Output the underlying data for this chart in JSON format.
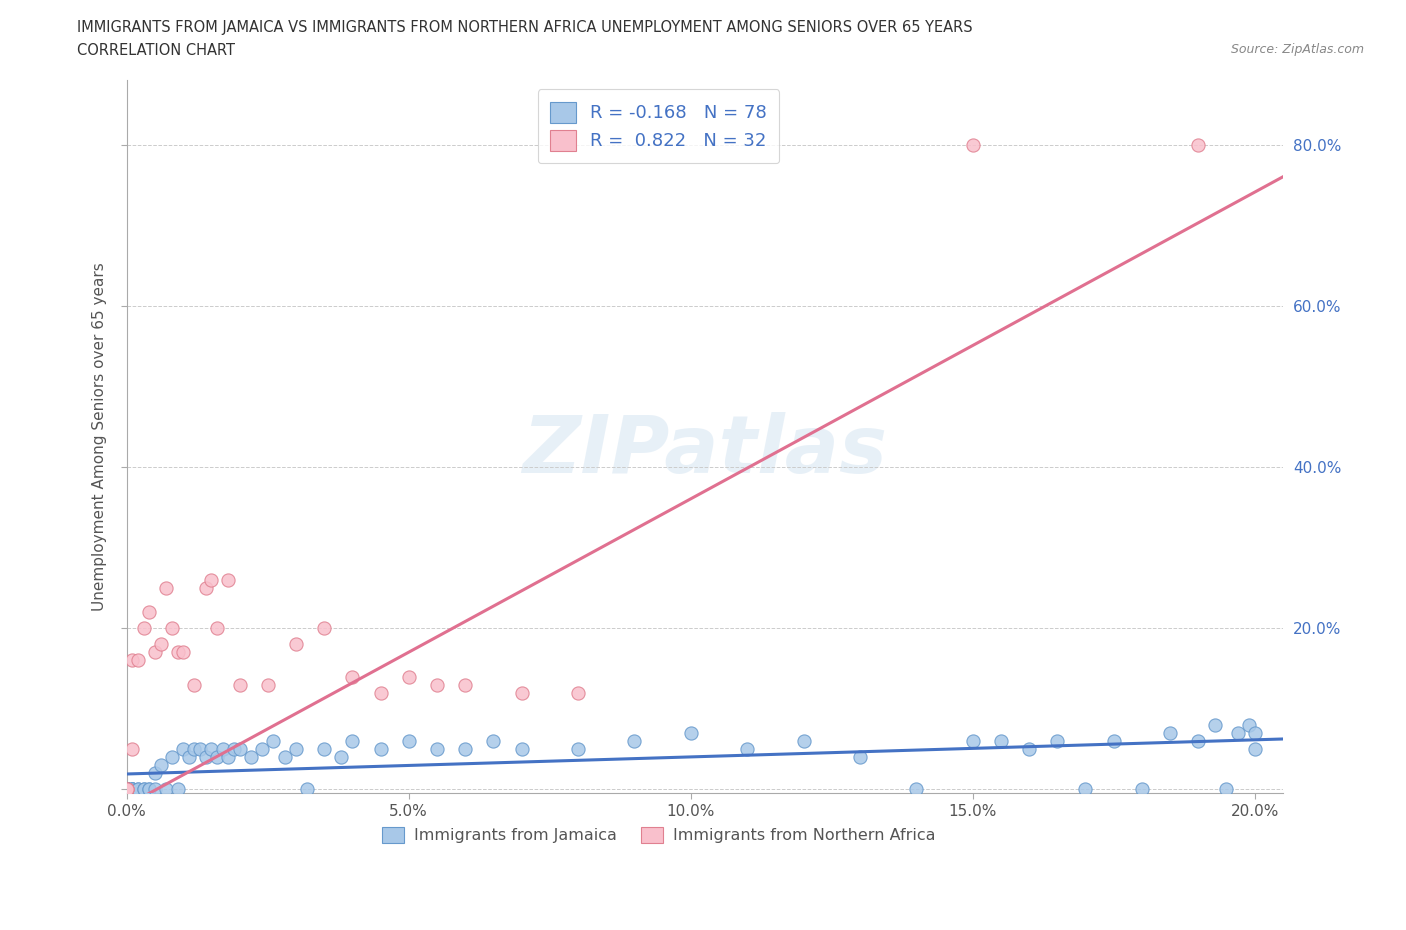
{
  "title_line1": "IMMIGRANTS FROM JAMAICA VS IMMIGRANTS FROM NORTHERN AFRICA UNEMPLOYMENT AMONG SENIORS OVER 65 YEARS",
  "title_line2": "CORRELATION CHART",
  "source_text": "Source: ZipAtlas.com",
  "ylabel": "Unemployment Among Seniors over 65 years",
  "jamaica_color": "#a8c8e8",
  "jamaica_edge_color": "#6699cc",
  "jamaica_line_color": "#4472c4",
  "north_africa_color": "#f9c0cc",
  "north_africa_edge_color": "#e08090",
  "north_africa_line_color": "#e07090",
  "jamaica_R": -0.168,
  "jamaica_N": 78,
  "north_africa_R": 0.822,
  "north_africa_N": 32,
  "watermark_text": "ZIPatlas",
  "background_color": "#ffffff",
  "xlim": [
    0.0,
    0.205
  ],
  "ylim": [
    -0.005,
    0.88
  ],
  "x_ticks": [
    0.0,
    0.05,
    0.1,
    0.15,
    0.2
  ],
  "x_tick_labels": [
    "0.0%",
    "5.0%",
    "10.0%",
    "15.0%",
    "20.0%"
  ],
  "y_ticks": [
    0.0,
    0.2,
    0.4,
    0.6,
    0.8
  ],
  "y_tick_labels": [
    "",
    "20.0%",
    "40.0%",
    "60.0%",
    "80.0%"
  ],
  "jamaica_x": [
    0.0,
    0.0,
    0.0,
    0.0,
    0.0,
    0.0,
    0.0,
    0.0,
    0.0,
    0.0,
    0.0,
    0.0,
    0.0,
    0.0,
    0.001,
    0.001,
    0.001,
    0.001,
    0.002,
    0.002,
    0.003,
    0.003,
    0.004,
    0.004,
    0.005,
    0.005,
    0.006,
    0.007,
    0.008,
    0.009,
    0.01,
    0.011,
    0.012,
    0.013,
    0.014,
    0.015,
    0.016,
    0.017,
    0.018,
    0.019,
    0.02,
    0.022,
    0.024,
    0.026,
    0.028,
    0.03,
    0.032,
    0.035,
    0.038,
    0.04,
    0.045,
    0.05,
    0.055,
    0.06,
    0.065,
    0.07,
    0.08,
    0.09,
    0.1,
    0.11,
    0.12,
    0.13,
    0.14,
    0.15,
    0.155,
    0.16,
    0.165,
    0.17,
    0.175,
    0.18,
    0.185,
    0.19,
    0.193,
    0.195,
    0.197,
    0.199,
    0.2,
    0.2
  ],
  "jamaica_y": [
    0.0,
    0.0,
    0.0,
    0.0,
    0.0,
    0.0,
    0.0,
    0.0,
    0.0,
    0.0,
    0.0,
    0.0,
    0.0,
    0.0,
    0.0,
    0.0,
    0.0,
    0.0,
    0.0,
    0.0,
    0.0,
    0.0,
    0.0,
    0.0,
    0.0,
    0.02,
    0.03,
    0.0,
    0.04,
    0.0,
    0.05,
    0.04,
    0.05,
    0.05,
    0.04,
    0.05,
    0.04,
    0.05,
    0.04,
    0.05,
    0.05,
    0.04,
    0.05,
    0.06,
    0.04,
    0.05,
    0.0,
    0.05,
    0.04,
    0.06,
    0.05,
    0.06,
    0.05,
    0.05,
    0.06,
    0.05,
    0.05,
    0.06,
    0.07,
    0.05,
    0.06,
    0.04,
    0.0,
    0.06,
    0.06,
    0.05,
    0.06,
    0.0,
    0.06,
    0.0,
    0.07,
    0.06,
    0.08,
    0.0,
    0.07,
    0.08,
    0.07,
    0.05
  ],
  "north_africa_x": [
    0.0,
    0.0,
    0.0,
    0.001,
    0.001,
    0.002,
    0.003,
    0.004,
    0.005,
    0.006,
    0.007,
    0.008,
    0.009,
    0.01,
    0.012,
    0.014,
    0.015,
    0.016,
    0.018,
    0.02,
    0.025,
    0.03,
    0.035,
    0.04,
    0.045,
    0.05,
    0.055,
    0.06,
    0.07,
    0.08,
    0.15,
    0.19
  ],
  "north_africa_y": [
    0.0,
    0.0,
    0.0,
    0.05,
    0.16,
    0.16,
    0.2,
    0.22,
    0.17,
    0.18,
    0.25,
    0.2,
    0.17,
    0.17,
    0.13,
    0.25,
    0.26,
    0.2,
    0.26,
    0.13,
    0.13,
    0.18,
    0.2,
    0.14,
    0.12,
    0.14,
    0.13,
    0.13,
    0.12,
    0.12,
    0.8,
    0.8
  ],
  "na_trend_x0": 0.0,
  "na_trend_y0": -0.02,
  "na_trend_x1": 0.205,
  "na_trend_y1": 0.76
}
